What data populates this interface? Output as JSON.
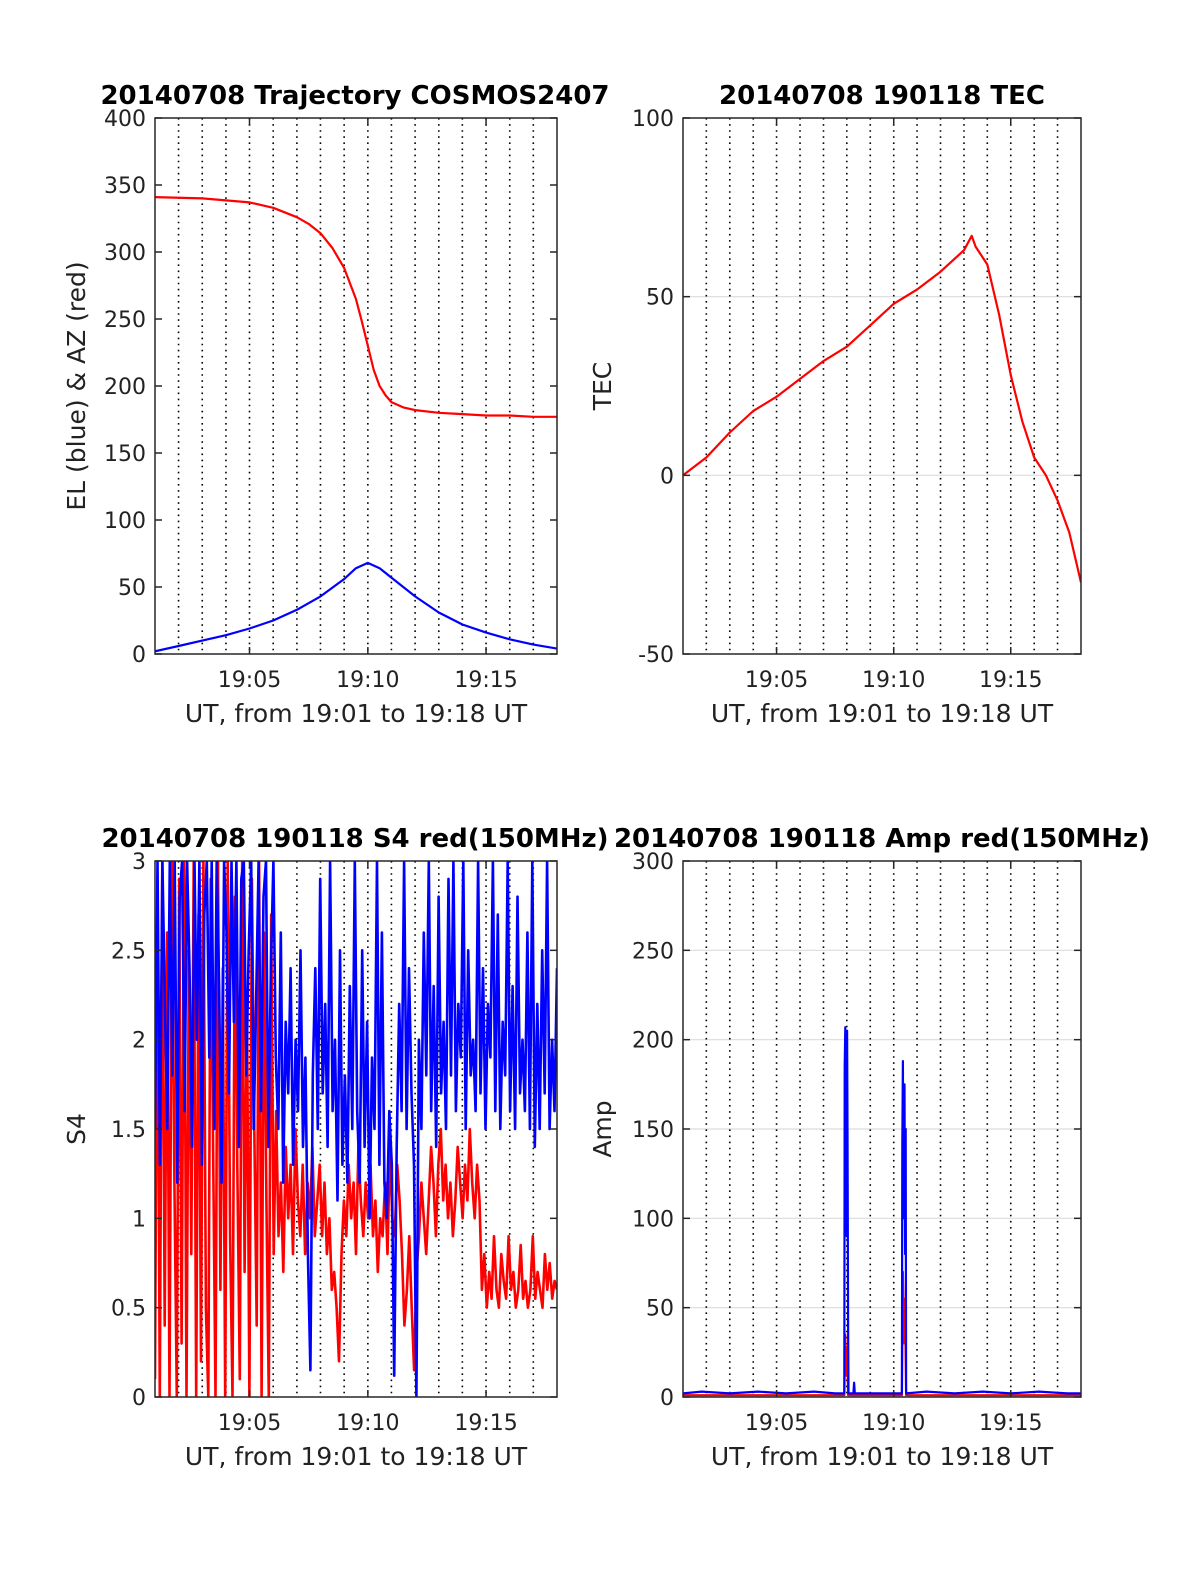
{
  "figure": {
    "background": "#ffffff",
    "series_colors": {
      "red": "#ff0000",
      "blue": "#0000ff"
    }
  },
  "chart_data": [
    {
      "id": "trajectory",
      "type": "line",
      "title": "20140708 Trajectory COSMOS2407",
      "xlabel": "UT, from 19:01 to 19:18 UT",
      "ylabel": "EL (blue) & AZ (red)",
      "xlim": [
        19.0167,
        19.3
      ],
      "x_ticks": [
        {
          "v": 19.0833,
          "label": "19:05"
        },
        {
          "v": 19.1667,
          "label": "19:10"
        },
        {
          "v": 19.25,
          "label": "19:15"
        }
      ],
      "x_dotted_grid": [
        19.0333,
        19.05,
        19.0667,
        19.0833,
        19.1,
        19.1167,
        19.1333,
        19.15,
        19.1667,
        19.1833,
        19.2,
        19.2167,
        19.2333,
        19.25,
        19.2667,
        19.2833
      ],
      "ylim": [
        0,
        400
      ],
      "y_ticks": [
        0,
        50,
        100,
        150,
        200,
        250,
        300,
        350,
        400
      ],
      "y_tick_labels": [
        "0",
        "50",
        "100",
        "150",
        "200",
        "250",
        "300",
        "350",
        "400"
      ],
      "series": [
        {
          "color": "#ff0000",
          "x": [
            19.0167,
            19.05,
            19.0833,
            19.1,
            19.1167,
            19.125,
            19.1333,
            19.1417,
            19.15,
            19.1583,
            19.1625,
            19.1667,
            19.1708,
            19.175,
            19.1792,
            19.1833,
            19.1917,
            19.2,
            19.2167,
            19.2333,
            19.25,
            19.2667,
            19.2833,
            19.3
          ],
          "y": [
            341,
            340,
            337,
            333,
            326,
            321,
            314,
            303,
            288,
            265,
            248,
            230,
            212,
            200,
            193,
            188,
            184,
            182,
            180,
            179,
            178,
            178,
            177,
            177
          ]
        },
        {
          "color": "#0000ff",
          "x": [
            19.0167,
            19.0333,
            19.05,
            19.0667,
            19.0833,
            19.1,
            19.1167,
            19.1333,
            19.15,
            19.1583,
            19.1667,
            19.175,
            19.1833,
            19.2,
            19.2167,
            19.2333,
            19.25,
            19.2667,
            19.2833,
            19.3
          ],
          "y": [
            2,
            6,
            10,
            14,
            19,
            25,
            33,
            43,
            56,
            64,
            68,
            64,
            57,
            43,
            31,
            22,
            16,
            11,
            7,
            4
          ]
        }
      ]
    },
    {
      "id": "tec",
      "type": "line",
      "title": "20140708 190118 TEC",
      "xlabel": "UT, from 19:01 to 19:18 UT",
      "ylabel": "TEC",
      "xlim": [
        19.0167,
        19.3
      ],
      "x_ticks": [
        {
          "v": 19.0833,
          "label": "19:05"
        },
        {
          "v": 19.1667,
          "label": "19:10"
        },
        {
          "v": 19.25,
          "label": "19:15"
        }
      ],
      "x_dotted_grid": [
        19.0333,
        19.05,
        19.0667,
        19.0833,
        19.1,
        19.1167,
        19.1333,
        19.15,
        19.1667,
        19.1833,
        19.2,
        19.2167,
        19.2333,
        19.25,
        19.2667,
        19.2833
      ],
      "ylim": [
        -50,
        100
      ],
      "y_ticks": [
        -50,
        0,
        50,
        100
      ],
      "y_tick_labels": [
        "-50",
        "0",
        "50",
        "100"
      ],
      "y_grid": [
        0,
        50
      ],
      "series": [
        {
          "color": "#ff0000",
          "x": [
            19.0167,
            19.0333,
            19.05,
            19.0667,
            19.0833,
            19.1,
            19.1167,
            19.1333,
            19.15,
            19.1667,
            19.1833,
            19.2,
            19.2167,
            19.2222,
            19.225,
            19.2333,
            19.2417,
            19.25,
            19.2583,
            19.2667,
            19.275,
            19.2833,
            19.2917,
            19.3
          ],
          "y": [
            0,
            5,
            12,
            18,
            22,
            27,
            32,
            36,
            42,
            48,
            52,
            57,
            63,
            67,
            64,
            59,
            45,
            28,
            15,
            5,
            0,
            -7,
            -16,
            -30
          ]
        }
      ]
    },
    {
      "id": "s4",
      "type": "line",
      "title": "20140708 190118 S4 red(150MHz)",
      "xlabel": "UT, from 19:01 to 19:18 UT",
      "ylabel": "S4",
      "xlim": [
        19.0167,
        19.3
      ],
      "x_ticks": [
        {
          "v": 19.0833,
          "label": "19:05"
        },
        {
          "v": 19.1667,
          "label": "19:10"
        },
        {
          "v": 19.25,
          "label": "19:15"
        }
      ],
      "x_dotted_grid": [
        19.0333,
        19.05,
        19.0667,
        19.0833,
        19.1,
        19.1167,
        19.1333,
        19.15,
        19.1667,
        19.1833,
        19.2,
        19.2167,
        19.2333,
        19.25,
        19.2667,
        19.2833
      ],
      "ylim": [
        0,
        3
      ],
      "y_ticks": [
        0,
        0.5,
        1,
        1.5,
        2,
        2.5,
        3
      ],
      "y_tick_labels": [
        "0",
        "0.5",
        "1",
        "1.5",
        "2",
        "2.5",
        "3"
      ],
      "series": [
        {
          "color": "#ff0000",
          "x_start": 19.0167,
          "x_end": 19.3,
          "values": [
            0.1,
            2.8,
            0.0,
            3.0,
            0.4,
            2.6,
            0.0,
            3.0,
            1.2,
            0.0,
            2.9,
            0.3,
            3.0,
            0.0,
            2.5,
            0.8,
            3.0,
            0.0,
            2.7,
            0.2,
            3.0,
            0.5,
            0.0,
            2.9,
            1.4,
            0.0,
            3.0,
            0.6,
            2.4,
            0.0,
            3.0,
            0.9,
            0.0,
            2.8,
            1.3,
            0.1,
            3.0,
            0.7,
            2.2,
            0.0,
            2.9,
            1.5,
            0.4,
            3.0,
            0.0,
            2.6,
            1.1,
            0.0,
            2.7,
            0.8,
            1.6,
            0.9,
            1.2,
            0.7,
            1.4,
            1.0,
            1.3,
            0.8,
            1.5,
            1.1,
            0.9,
            1.3,
            0.8,
            1.2,
            1.0,
            1.4,
            0.9,
            1.1,
            1.3,
            0.9,
            1.2,
            0.8,
            1.0,
            0.6,
            0.7,
            0.5,
            0.2,
            0.8,
            1.1,
            0.9,
            1.3,
            1.0,
            1.2,
            0.8,
            1.4,
            1.1,
            0.9,
            1.2,
            1.0,
            1.3,
            0.9,
            1.1,
            0.7,
            1.0,
            0.9,
            1.2,
            0.8,
            1.4,
            1.0,
            0.9,
            1.3,
            1.1,
            0.8,
            0.4,
            0.6,
            0.9,
            0.5,
            0.15,
            0.7,
            0.9,
            1.2,
            1.0,
            0.8,
            1.1,
            1.4,
            1.2,
            0.9,
            1.3,
            1.5,
            1.1,
            1.3,
            1.0,
            1.2,
            0.9,
            1.1,
            1.4,
            1.2,
            1.0,
            1.3,
            1.1,
            1.5,
            1.2,
            1.0,
            1.3,
            1.1,
            0.6,
            0.8,
            0.5,
            0.7,
            0.55,
            0.9,
            0.6,
            0.5,
            0.8,
            0.65,
            0.55,
            0.9,
            0.6,
            0.7,
            0.5,
            0.6,
            0.85,
            0.55,
            0.65,
            0.5,
            0.6,
            0.9,
            0.55,
            0.7,
            0.6,
            0.5,
            0.8,
            0.6,
            0.75,
            0.55,
            0.65,
            0.6
          ]
        },
        {
          "color": "#0000ff",
          "x_start": 19.0167,
          "x_end": 19.3,
          "values": [
            1.5,
            3.0,
            1.3,
            3.0,
            2.2,
            1.5,
            3.0,
            1.8,
            3.0,
            1.2,
            2.8,
            3.0,
            1.6,
            3.0,
            2.4,
            1.4,
            3.0,
            2.0,
            3.0,
            1.3,
            2.7,
            3.0,
            1.9,
            3.0,
            1.5,
            3.0,
            2.3,
            1.2,
            3.0,
            2.6,
            1.7,
            3.0,
            2.1,
            3.0,
            1.4,
            2.9,
            3.0,
            1.8,
            2.5,
            3.0,
            1.5,
            2.2,
            3.0,
            1.6,
            2.8,
            3.0,
            1.4,
            2.4,
            3.0,
            1.9,
            1.5,
            2.6,
            1.2,
            2.1,
            1.7,
            2.4,
            1.3,
            2.0,
            1.6,
            2.5,
            1.4,
            1.9,
            0.8,
            0.15,
            1.8,
            2.4,
            1.5,
            2.9,
            1.7,
            2.2,
            1.4,
            3.0,
            1.6,
            2.0,
            1.1,
            2.5,
            1.3,
            1.8,
            1.2,
            2.3,
            1.5,
            3.0,
            1.6,
            1.2,
            2.5,
            1.4,
            2.1,
            1.0,
            1.9,
            1.5,
            3.0,
            1.3,
            2.6,
            1.2,
            1.0,
            1.6,
            1.3,
            0.12,
            1.4,
            2.2,
            1.6,
            3.0,
            1.5,
            2.4,
            1.7,
            1.3,
            0.0,
            2.0,
            1.5,
            2.6,
            1.8,
            3.0,
            1.6,
            2.3,
            1.4,
            2.8,
            1.7,
            2.1,
            1.5,
            2.9,
            1.8,
            3.0,
            1.6,
            2.2,
            1.9,
            3.0,
            1.5,
            2.5,
            1.8,
            2.0,
            1.6,
            3.0,
            1.7,
            2.4,
            1.5,
            2.2,
            1.9,
            3.0,
            1.6,
            2.7,
            1.5,
            2.1,
            1.8,
            3.0,
            1.6,
            2.3,
            1.5,
            2.8,
            1.7,
            2.0,
            1.6,
            2.6,
            1.5,
            3.0,
            1.4,
            2.2,
            1.5,
            2.5,
            1.7,
            3.0,
            1.5,
            2.0,
            1.6,
            2.4
          ]
        }
      ]
    },
    {
      "id": "amp",
      "type": "line",
      "title": "20140708 190118 Amp red(150MHz)",
      "xlabel": "UT, from 19:01 to 19:18 UT",
      "ylabel": "Amp",
      "xlim": [
        19.0167,
        19.3
      ],
      "x_ticks": [
        {
          "v": 19.0833,
          "label": "19:05"
        },
        {
          "v": 19.1667,
          "label": "19:10"
        },
        {
          "v": 19.25,
          "label": "19:15"
        }
      ],
      "x_dotted_grid": [
        19.0333,
        19.05,
        19.0667,
        19.0833,
        19.1,
        19.1167,
        19.1333,
        19.15,
        19.1667,
        19.1833,
        19.2,
        19.2167,
        19.2333,
        19.25,
        19.2667,
        19.2833
      ],
      "ylim": [
        0,
        300
      ],
      "y_ticks": [
        0,
        50,
        100,
        150,
        200,
        250,
        300
      ],
      "y_tick_labels": [
        "0",
        "50",
        "100",
        "150",
        "200",
        "250",
        "300"
      ],
      "y_grid": [
        50,
        100,
        150,
        200,
        250
      ],
      "series": [
        {
          "color": "#ff0000",
          "x": [
            19.0167,
            19.1315,
            19.1322,
            19.1328,
            19.1335,
            19.1342,
            19.1725,
            19.1732,
            19.174,
            19.1747,
            19.1755,
            19.3
          ],
          "y": [
            1,
            1,
            35,
            12,
            28,
            1,
            1,
            70,
            30,
            55,
            1,
            1
          ]
        },
        {
          "color": "#0000ff",
          "x": [
            19.0167,
            19.03,
            19.05,
            19.07,
            19.09,
            19.11,
            19.125,
            19.1315,
            19.1318,
            19.1322,
            19.1325,
            19.1328,
            19.1332,
            19.1335,
            19.1338,
            19.1342,
            19.1345,
            19.138,
            19.1385,
            19.139,
            19.1725,
            19.1728,
            19.1732,
            19.1736,
            19.174,
            19.1744,
            19.1748,
            19.1752,
            19.1755,
            19.19,
            19.21,
            19.23,
            19.25,
            19.27,
            19.29,
            19.3
          ],
          "y": [
            2,
            3,
            2,
            3,
            2,
            3,
            2,
            2,
            185,
            207,
            120,
            198,
            90,
            205,
            150,
            40,
            2,
            2,
            8,
            2,
            2,
            140,
            188,
            100,
            162,
            175,
            80,
            150,
            2,
            3,
            2,
            3,
            2,
            3,
            2,
            2
          ]
        }
      ]
    }
  ]
}
